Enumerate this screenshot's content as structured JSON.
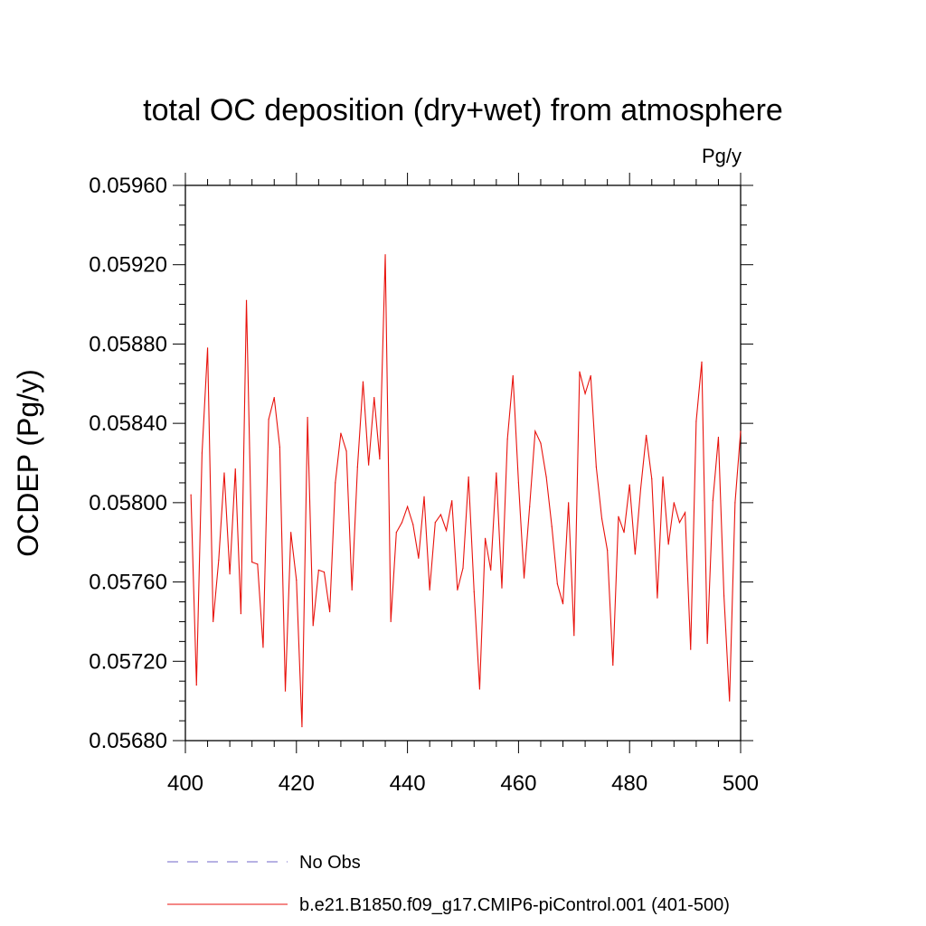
{
  "chart_data": {
    "type": "line",
    "title": "total OC deposition (dry+wet) from atmosphere",
    "units_label": "Pg/y",
    "ylabel": "OCDEP  (Pg/y)",
    "xlabel": "",
    "xlim": [
      400,
      500
    ],
    "ylim": [
      0.0568,
      0.0596
    ],
    "x_ticks": [
      400,
      420,
      440,
      460,
      480,
      500
    ],
    "y_ticks": [
      "0.05680",
      "0.05720",
      "0.05760",
      "0.05800",
      "0.05840",
      "0.05880",
      "0.05920",
      "0.05960"
    ],
    "grid": false,
    "legend": [
      {
        "label": "No Obs",
        "color": "#6f66c9",
        "style": "dashed"
      },
      {
        "label": "b.e21.B1850.f09_g17.CMIP6-piControl.001 (401-500)",
        "color": "#e8120c",
        "style": "solid"
      }
    ],
    "series": [
      {
        "name": "b.e21.B1850.f09_g17.CMIP6-piControl.001 (401-500)",
        "color": "#e8120c",
        "x_start": 401,
        "values": [
          0.05804,
          0.05708,
          0.05825,
          0.05878,
          0.0574,
          0.05771,
          0.05815,
          0.05764,
          0.05817,
          0.05744,
          0.05902,
          0.0577,
          0.05769,
          0.05727,
          0.05842,
          0.05853,
          0.05828,
          0.05705,
          0.05785,
          0.05761,
          0.05687,
          0.05843,
          0.05738,
          0.05766,
          0.05765,
          0.05745,
          0.0581,
          0.05835,
          0.05826,
          0.05756,
          0.05818,
          0.05861,
          0.05819,
          0.05853,
          0.05822,
          0.05925,
          0.0574,
          0.05785,
          0.0579,
          0.05798,
          0.05789,
          0.05772,
          0.05803,
          0.05756,
          0.0579,
          0.05794,
          0.05786,
          0.05801,
          0.05756,
          0.05767,
          0.05813,
          0.05755,
          0.05706,
          0.05782,
          0.05766,
          0.05815,
          0.05757,
          0.05832,
          0.05864,
          0.0581,
          0.05762,
          0.05798,
          0.05836,
          0.0583,
          0.05813,
          0.05788,
          0.05759,
          0.05749,
          0.058,
          0.05733,
          0.05866,
          0.05855,
          0.05864,
          0.05818,
          0.05792,
          0.05776,
          0.05718,
          0.05793,
          0.05785,
          0.05809,
          0.05774,
          0.05807,
          0.05834,
          0.05812,
          0.05752,
          0.05813,
          0.05779,
          0.058,
          0.0579,
          0.05795,
          0.05726,
          0.05841,
          0.05871,
          0.05729,
          0.05801,
          0.05833,
          0.05753,
          0.057,
          0.058,
          0.05836
        ]
      }
    ]
  }
}
